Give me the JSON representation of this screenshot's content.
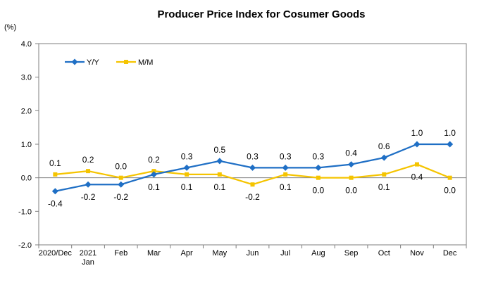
{
  "chart_data": {
    "type": "line",
    "title": "Producer Price Index for Cosumer Goods",
    "unit_label": "(%)",
    "categories": [
      "2020/Dec",
      "2021",
      "Feb",
      "Mar",
      "Apr",
      "May",
      "Jun",
      "Jul",
      "Aug",
      "Sep",
      "Oct",
      "Nov",
      "Dec"
    ],
    "category_sublabels": [
      "",
      "Jan",
      "",
      "",
      "",
      "",
      "",
      "",
      "",
      "",
      "",
      "",
      ""
    ],
    "ylim": [
      -2.0,
      4.0
    ],
    "yticks": [
      "4.0",
      "3.0",
      "2.0",
      "1.0",
      "0.0",
      "-1.0",
      "-2.0"
    ],
    "ytick_values": [
      4,
      3,
      2,
      1,
      0,
      -1,
      -2
    ],
    "grid": false,
    "legend_position": "top-left",
    "series": [
      {
        "name": "Y/Y",
        "color": "#1F6FC5",
        "marker": "diamond",
        "values": [
          -0.4,
          -0.2,
          -0.2,
          0.1,
          0.3,
          0.5,
          0.3,
          0.3,
          0.3,
          0.4,
          0.6,
          1.0,
          1.0
        ],
        "labels": [
          "-0.4",
          "-0.2",
          "-0.2",
          "0.1",
          "0.3",
          "0.5",
          "0.3",
          "0.3",
          "0.3",
          "0.4",
          "0.6",
          "1.0",
          "1.0"
        ]
      },
      {
        "name": "M/M",
        "color": "#F5C400",
        "marker": "square",
        "values": [
          0.1,
          0.2,
          0.0,
          0.2,
          0.1,
          0.1,
          -0.2,
          0.1,
          0.0,
          0.0,
          0.1,
          0.4,
          0.0
        ],
        "labels": [
          "0.1",
          "0.2",
          "0.0",
          "0.2",
          "0.1",
          "0.1",
          "-0.2",
          "0.1",
          "0.0",
          "0.0",
          "0.1",
          "0.4",
          "0.0"
        ]
      }
    ]
  }
}
